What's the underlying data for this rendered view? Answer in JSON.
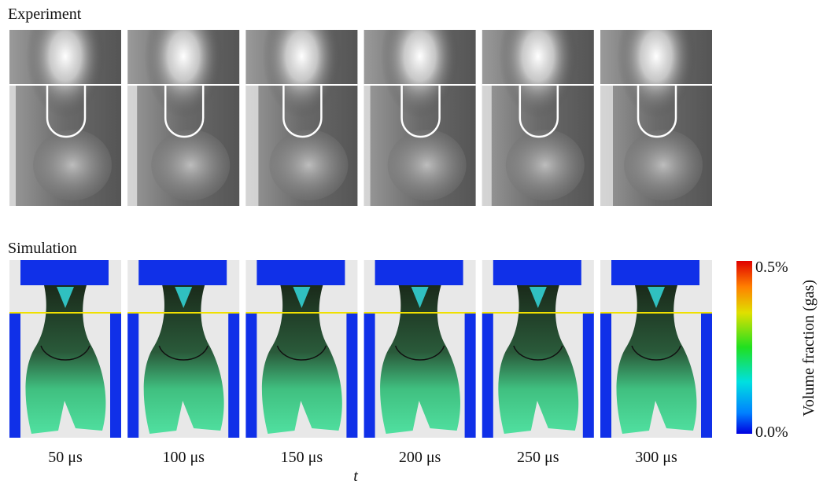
{
  "experiment": {
    "label": "Experiment"
  },
  "simulation": {
    "label": "Simulation"
  },
  "frames": [
    "50 μs",
    "100 μs",
    "150 μs",
    "200 μs",
    "250 μs",
    "300 μs"
  ],
  "time_axis": "t",
  "colorbar": {
    "title": "Volume fraction (gas)",
    "max_label": "0.5%",
    "min_label": "0.0%"
  }
}
